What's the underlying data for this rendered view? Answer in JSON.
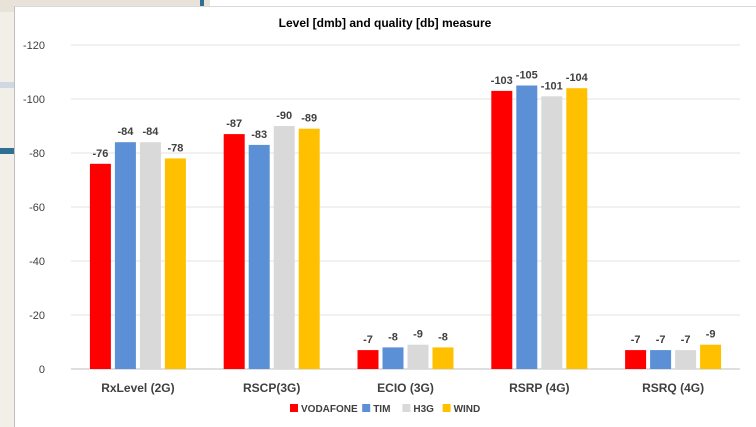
{
  "chart_data": {
    "type": "bar",
    "title": "Level [dmb] and quality [db] measure",
    "categories": [
      "RxLevel (2G)",
      "RSCP(3G)",
      "ECIO (3G)",
      "RSRP (4G)",
      "RSRQ (4G)"
    ],
    "series": [
      {
        "name": "VODAFONE",
        "color": "#ff0000",
        "values": [
          76,
          87,
          7,
          103,
          7
        ],
        "labels": [
          "-76",
          "-87",
          "-7",
          "-103",
          "-7"
        ]
      },
      {
        "name": "TIM",
        "color": "#5b8fd6",
        "values": [
          84,
          83,
          8,
          105,
          7
        ],
        "labels": [
          "-84",
          "-83",
          "-8",
          "-105",
          "-7"
        ]
      },
      {
        "name": "H3G",
        "color": "#d9d9d9",
        "values": [
          84,
          90,
          9,
          101,
          7
        ],
        "labels": [
          "-84",
          "-90",
          "-9",
          "-101",
          "-7"
        ]
      },
      {
        "name": "WIND",
        "color": "#ffc000",
        "values": [
          78,
          89,
          8,
          104,
          9
        ],
        "labels": [
          "-78",
          "-89",
          "-8",
          "-104",
          "-9"
        ]
      }
    ],
    "y_ticks": [
      0,
      20,
      40,
      60,
      80,
      100,
      120
    ],
    "y_tick_labels": [
      "0",
      "-20",
      "-40",
      "-60",
      "-80",
      "-100",
      "-120"
    ],
    "ylim": [
      0,
      120
    ],
    "grid": true,
    "legend_position": "bottom"
  }
}
